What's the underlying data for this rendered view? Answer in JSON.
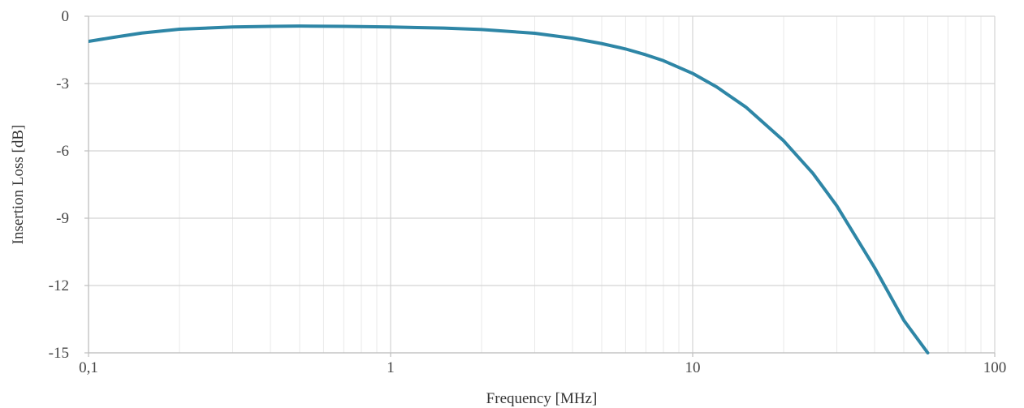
{
  "chart_data": {
    "type": "line",
    "title": "",
    "xlabel": "Frequency [MHz]",
    "ylabel": "Insertion Loss [dB]",
    "x_scale": "log",
    "xlim": [
      0.1,
      100
    ],
    "ylim": [
      -15,
      0
    ],
    "grid": true,
    "legend": "none",
    "x_ticks": [
      {
        "value": 0.1,
        "label": "0,1"
      },
      {
        "value": 1,
        "label": "1"
      },
      {
        "value": 10,
        "label": "10"
      },
      {
        "value": 100,
        "label": "100"
      }
    ],
    "y_ticks": [
      {
        "value": 0,
        "label": "0"
      },
      {
        "value": -3,
        "label": "-3"
      },
      {
        "value": -6,
        "label": "-6"
      },
      {
        "value": -9,
        "label": "-9"
      },
      {
        "value": -12,
        "label": "-12"
      },
      {
        "value": -15,
        "label": "-15"
      }
    ],
    "series": [
      {
        "color": "#2E86A6",
        "x": [
          0.1,
          0.12,
          0.15,
          0.2,
          0.3,
          0.4,
          0.5,
          0.7,
          1,
          1.5,
          2,
          3,
          4,
          5,
          6,
          7,
          8,
          10,
          12,
          15,
          20,
          25,
          30,
          40,
          50,
          60
        ],
        "y": [
          -1.12,
          -0.95,
          -0.75,
          -0.58,
          -0.48,
          -0.45,
          -0.44,
          -0.45,
          -0.48,
          -0.53,
          -0.59,
          -0.76,
          -0.98,
          -1.22,
          -1.46,
          -1.72,
          -1.98,
          -2.55,
          -3.15,
          -4.05,
          -5.55,
          -7.0,
          -8.45,
          -11.2,
          -13.55,
          -15.0
        ]
      }
    ]
  }
}
